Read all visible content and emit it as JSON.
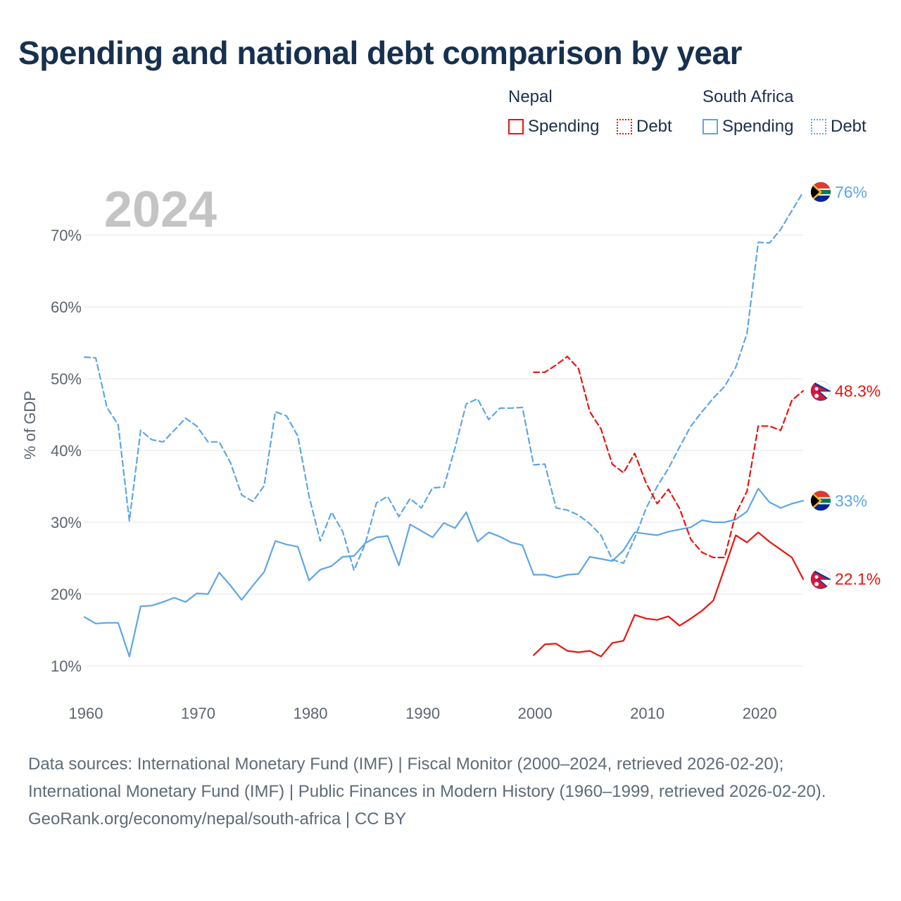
{
  "title": "Spending and national debt comparison by year",
  "legend": {
    "groups": [
      {
        "country": "Nepal",
        "items": [
          {
            "label": "Spending",
            "style": "solid",
            "color": "#e8150f"
          },
          {
            "label": "Debt",
            "style": "dotted",
            "color": "#e8150f"
          }
        ]
      },
      {
        "country": "South Africa",
        "items": [
          {
            "label": "Spending",
            "style": "solid",
            "color": "#5ea6e6"
          },
          {
            "label": "Debt",
            "style": "dotted",
            "color": "#5ea6e6"
          }
        ]
      }
    ]
  },
  "colors": {
    "nepal": "#e8150f",
    "south_africa": "#5ea6e6",
    "grid": "#e6e6e6",
    "axis_text": "#5d6470",
    "watermark": "#c4c4c4"
  },
  "chart_data": {
    "type": "line",
    "watermark_year": "2024",
    "ylabel": "% of GDP",
    "xlim": [
      1960,
      2024
    ],
    "ylim": [
      10,
      76
    ],
    "x_ticks": [
      1960,
      1970,
      1980,
      1990,
      2000,
      2010,
      2020
    ],
    "y_ticks": [
      {
        "value": 10,
        "label": "10%"
      },
      {
        "value": 20,
        "label": "20%"
      },
      {
        "value": 30,
        "label": "30%"
      },
      {
        "value": 40,
        "label": "40%"
      },
      {
        "value": 50,
        "label": "50%"
      },
      {
        "value": 60,
        "label": "60%"
      },
      {
        "value": 70,
        "label": "70%"
      }
    ],
    "series": [
      {
        "name": "South Africa Debt",
        "country": "South Africa",
        "metric": "Debt",
        "dash": "dashed",
        "end_label": "76%",
        "start": 1960,
        "values": [
          53.0,
          52.9,
          46.0,
          43.6,
          30.2,
          42.8,
          41.5,
          41.2,
          42.8,
          44.5,
          43.4,
          41.2,
          41.2,
          38.3,
          33.8,
          32.9,
          35.1,
          45.4,
          44.8,
          42.0,
          33.6,
          27.4,
          31.4,
          28.7,
          23.3,
          27.0,
          32.7,
          33.6,
          30.8,
          33.3,
          32.0,
          34.8,
          34.9,
          40.4,
          46.5,
          47.2,
          44.3,
          45.9,
          45.9,
          46.0,
          38.0,
          38.1,
          32.0,
          31.7,
          31.0,
          29.8,
          28.2,
          24.8,
          24.3,
          27.8,
          31.9,
          35.0,
          37.5,
          40.5,
          43.4,
          45.4,
          47.3,
          48.9,
          51.6,
          56.3,
          69.0,
          68.9,
          70.8,
          73.4,
          76.0
        ]
      },
      {
        "name": "South Africa Spending",
        "country": "South Africa",
        "metric": "Spending",
        "dash": "solid",
        "end_label": "33%",
        "start": 1960,
        "values": [
          16.8,
          15.9,
          16.0,
          16.0,
          11.3,
          18.3,
          18.4,
          18.9,
          19.5,
          18.9,
          20.1,
          20.0,
          23.0,
          21.2,
          19.2,
          21.2,
          23.1,
          27.4,
          26.9,
          26.6,
          21.9,
          23.4,
          23.9,
          25.2,
          25.3,
          27.1,
          27.9,
          28.1,
          24.0,
          29.7,
          28.8,
          27.9,
          29.9,
          29.2,
          31.4,
          27.3,
          28.6,
          28.0,
          27.2,
          26.8,
          22.7,
          22.7,
          22.3,
          22.7,
          22.8,
          25.2,
          24.9,
          24.6,
          26.1,
          28.6,
          28.4,
          28.2,
          28.7,
          29.0,
          29.3,
          30.3,
          30.0,
          30.0,
          30.4,
          31.5,
          34.7,
          32.8,
          32.0,
          32.6,
          33.0
        ]
      },
      {
        "name": "Nepal Debt",
        "country": "Nepal",
        "metric": "Debt",
        "dash": "dashed",
        "end_label": "48.3%",
        "start": 2000,
        "values": [
          50.9,
          50.9,
          51.9,
          53.1,
          51.4,
          45.4,
          43.0,
          38.1,
          36.9,
          39.6,
          35.5,
          32.6,
          34.6,
          31.9,
          27.6,
          25.8,
          25.1,
          25.1,
          31.2,
          34.3,
          43.4,
          43.4,
          42.8,
          47.0,
          48.3
        ]
      },
      {
        "name": "Nepal Spending",
        "country": "Nepal",
        "metric": "Spending",
        "dash": "solid",
        "end_label": "22.1%",
        "start": 2000,
        "values": [
          11.5,
          13.0,
          13.1,
          12.1,
          11.9,
          12.1,
          11.3,
          13.2,
          13.5,
          17.1,
          16.6,
          16.4,
          16.9,
          15.6,
          16.6,
          17.7,
          19.1,
          23.6,
          28.2,
          27.2,
          28.6,
          27.3,
          26.2,
          25.1,
          22.1
        ]
      }
    ]
  },
  "sources": {
    "line1": "Data sources: International Monetary Fund (IMF) | Fiscal Monitor (2000–2024, retrieved 2026-02-20); International Monetary Fund (IMF) | Public Finances in Modern History (1960–1999, retrieved 2026-02-20).",
    "line2": "GeoRank.org/economy/nepal/south-africa | CC BY"
  }
}
